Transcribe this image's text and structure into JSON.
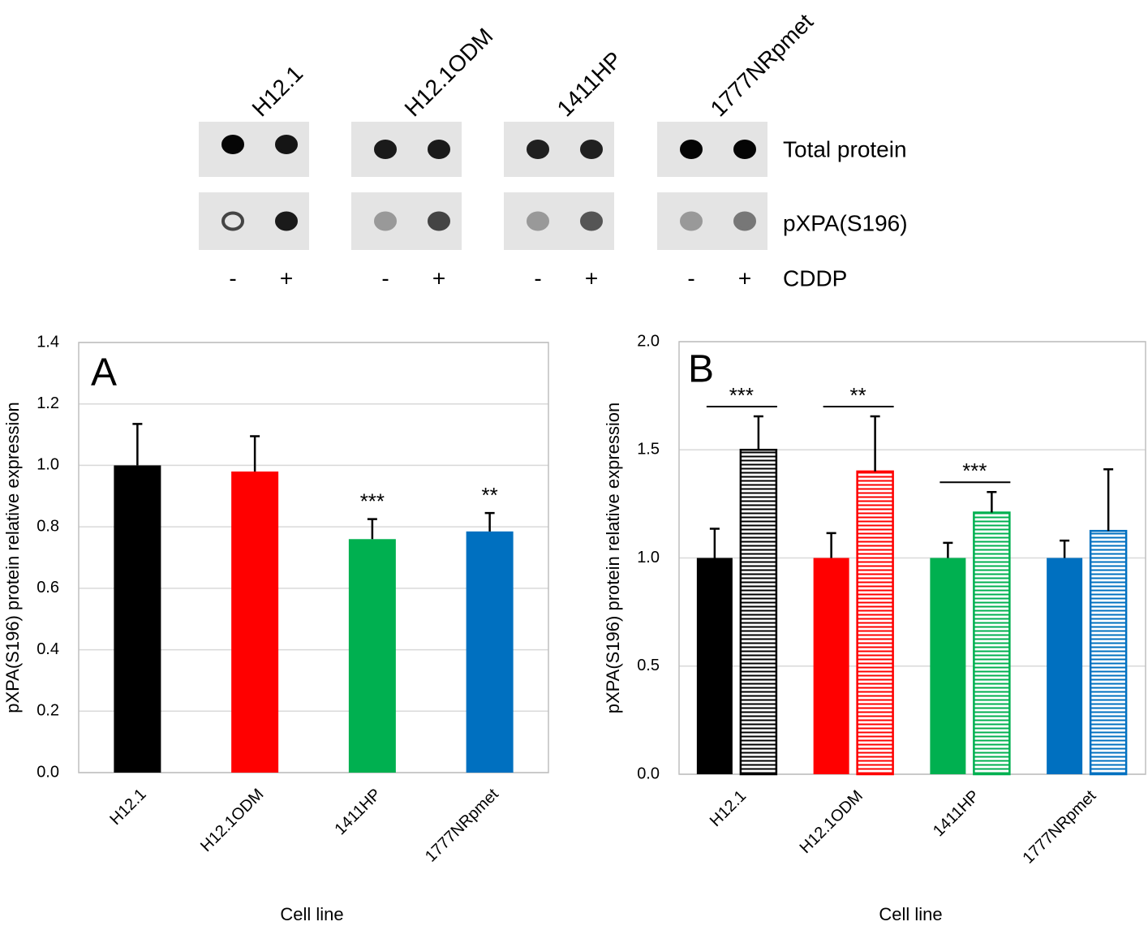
{
  "blot": {
    "cell_lines": [
      "H12.1",
      "H12.1ODM",
      "1411HP",
      "1777NRpmet"
    ],
    "rows": [
      "Total protein",
      "pXPA(S196)"
    ],
    "treatments": [
      "-",
      "+"
    ],
    "treatment_label": "CDDP"
  },
  "chart_data": [
    {
      "type": "bar",
      "panel_label": "A",
      "y_label": "pXPA(S196) protein relative expression",
      "x_label": "Cell line",
      "categories": [
        "H12.1",
        "H12.1ODM",
        "1411HP",
        "1777NRpmet"
      ],
      "values": [
        1.0,
        0.98,
        0.76,
        0.785
      ],
      "errors": [
        0.135,
        0.115,
        0.065,
        0.06
      ],
      "colors": [
        "#000000",
        "#ff0000",
        "#00b050",
        "#0070c0"
      ],
      "annotations": [
        null,
        null,
        "***",
        "**"
      ],
      "ylim": [
        0,
        1.4
      ],
      "yticks": [
        {
          "value": 0,
          "label": "0.0"
        },
        0.2,
        0.4,
        0.6,
        0.8,
        {
          "value": 1,
          "label": "1.0"
        },
        1.2,
        1.4
      ],
      "grid": true
    },
    {
      "type": "bar",
      "panel_label": "B",
      "y_label": "pXPA(S196) protein relative expression",
      "x_label": "Cell line",
      "categories": [
        "H12.1",
        "H12.1ODM",
        "1411HP",
        "1777NRpmet"
      ],
      "colors": [
        "#000000",
        "#ff0000",
        "#00b050",
        "#0070c0"
      ],
      "series": [
        {
          "pattern": "solid",
          "values": [
            1.0,
            1.0,
            1.0,
            1.0
          ],
          "errors": [
            0.135,
            0.115,
            0.07,
            0.08
          ]
        },
        {
          "pattern": "hatched",
          "values": [
            1.5,
            1.4,
            1.21,
            1.125
          ],
          "errors": [
            0.155,
            0.255,
            0.095,
            0.285
          ]
        }
      ],
      "annotations": [
        "***",
        "**",
        "***",
        null
      ],
      "ylim": [
        0,
        2
      ],
      "yticks": [
        {
          "value": 0,
          "label": "0.0"
        },
        0.5,
        {
          "value": 1,
          "label": "1.0"
        },
        1.5,
        {
          "value": 2,
          "label": "2.0"
        }
      ],
      "grid": true
    }
  ]
}
